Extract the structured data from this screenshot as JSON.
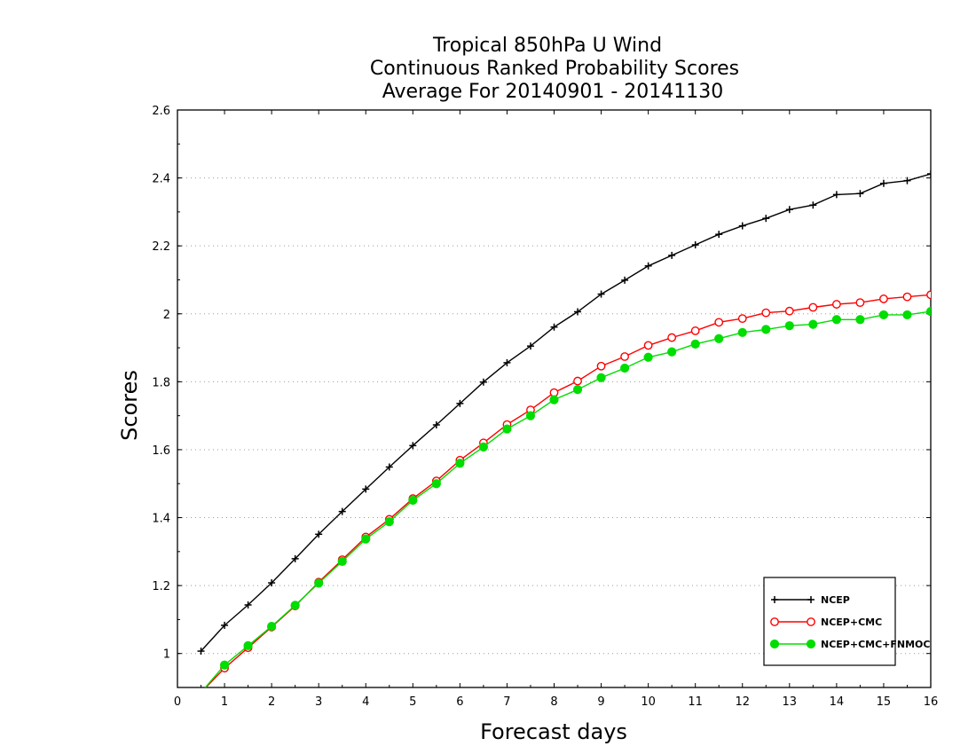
{
  "chart_data": {
    "type": "line",
    "title_lines": [
      "Tropical 850hPa U Wind",
      "Continuous Ranked Probability Scores",
      "Average For 20140901 - 20141130"
    ],
    "xlabel": "Forecast days",
    "ylabel": "Scores",
    "xlim": [
      0,
      16
    ],
    "ylim": [
      0.9,
      2.6
    ],
    "x_ticks": [
      0,
      1,
      2,
      3,
      4,
      5,
      6,
      7,
      8,
      9,
      10,
      11,
      12,
      13,
      14,
      15,
      16
    ],
    "x_tick_labels": [
      "0",
      "1",
      "2",
      "3",
      "4",
      "5",
      "6",
      "7",
      "8",
      "9",
      "10",
      "11",
      "12",
      "13",
      "14",
      "15",
      "16"
    ],
    "y_ticks": [
      1,
      1.2,
      1.4,
      1.6,
      1.8,
      2,
      2.2,
      2.4,
      2.6
    ],
    "y_tick_labels": [
      "1",
      "1.2",
      "1.4",
      "1.6",
      "1.8",
      "2",
      "2.2",
      "2.4",
      "2.6"
    ],
    "grid": "horizontal dotted",
    "legend_position": "bottom-right",
    "x": [
      0.5,
      1,
      1.5,
      2,
      2.5,
      3,
      3.5,
      4,
      4.5,
      5,
      5.5,
      6,
      6.5,
      7,
      7.5,
      8,
      8.5,
      9,
      9.5,
      10,
      10.5,
      11,
      11.5,
      12,
      12.5,
      13,
      13.5,
      14,
      14.5,
      15,
      15.5,
      16
    ],
    "series": [
      {
        "name": "NCEP",
        "color": "#000000",
        "marker": "plus",
        "values": [
          1.007,
          1.083,
          1.143,
          1.208,
          1.279,
          1.351,
          1.418,
          1.484,
          1.549,
          1.612,
          1.673,
          1.736,
          1.799,
          1.856,
          1.905,
          1.961,
          2.006,
          2.058,
          2.099,
          2.141,
          2.172,
          2.203,
          2.234,
          2.259,
          2.281,
          2.307,
          2.32,
          2.351,
          2.354,
          2.384,
          2.392,
          2.412
        ]
      },
      {
        "name": "NCEP+CMC",
        "color": "#ff0000",
        "marker": "open-circle",
        "values": [
          0.885,
          0.957,
          1.017,
          1.078,
          1.14,
          1.21,
          1.276,
          1.343,
          1.395,
          1.456,
          1.508,
          1.569,
          1.62,
          1.674,
          1.717,
          1.768,
          1.802,
          1.846,
          1.874,
          1.907,
          1.93,
          1.95,
          1.975,
          1.986,
          2.003,
          2.008,
          2.019,
          2.028,
          2.033,
          2.044,
          2.05,
          2.056
        ]
      },
      {
        "name": "NCEP+CMC+FNMOC",
        "color": "#00dd00",
        "marker": "filled-circle",
        "values": [
          0.885,
          0.966,
          1.023,
          1.08,
          1.142,
          1.207,
          1.271,
          1.337,
          1.388,
          1.451,
          1.5,
          1.56,
          1.608,
          1.661,
          1.7,
          1.747,
          1.777,
          1.812,
          1.84,
          1.872,
          1.888,
          1.911,
          1.927,
          1.945,
          1.954,
          1.965,
          1.969,
          1.983,
          1.983,
          1.997,
          1.997,
          2.007
        ]
      }
    ]
  }
}
